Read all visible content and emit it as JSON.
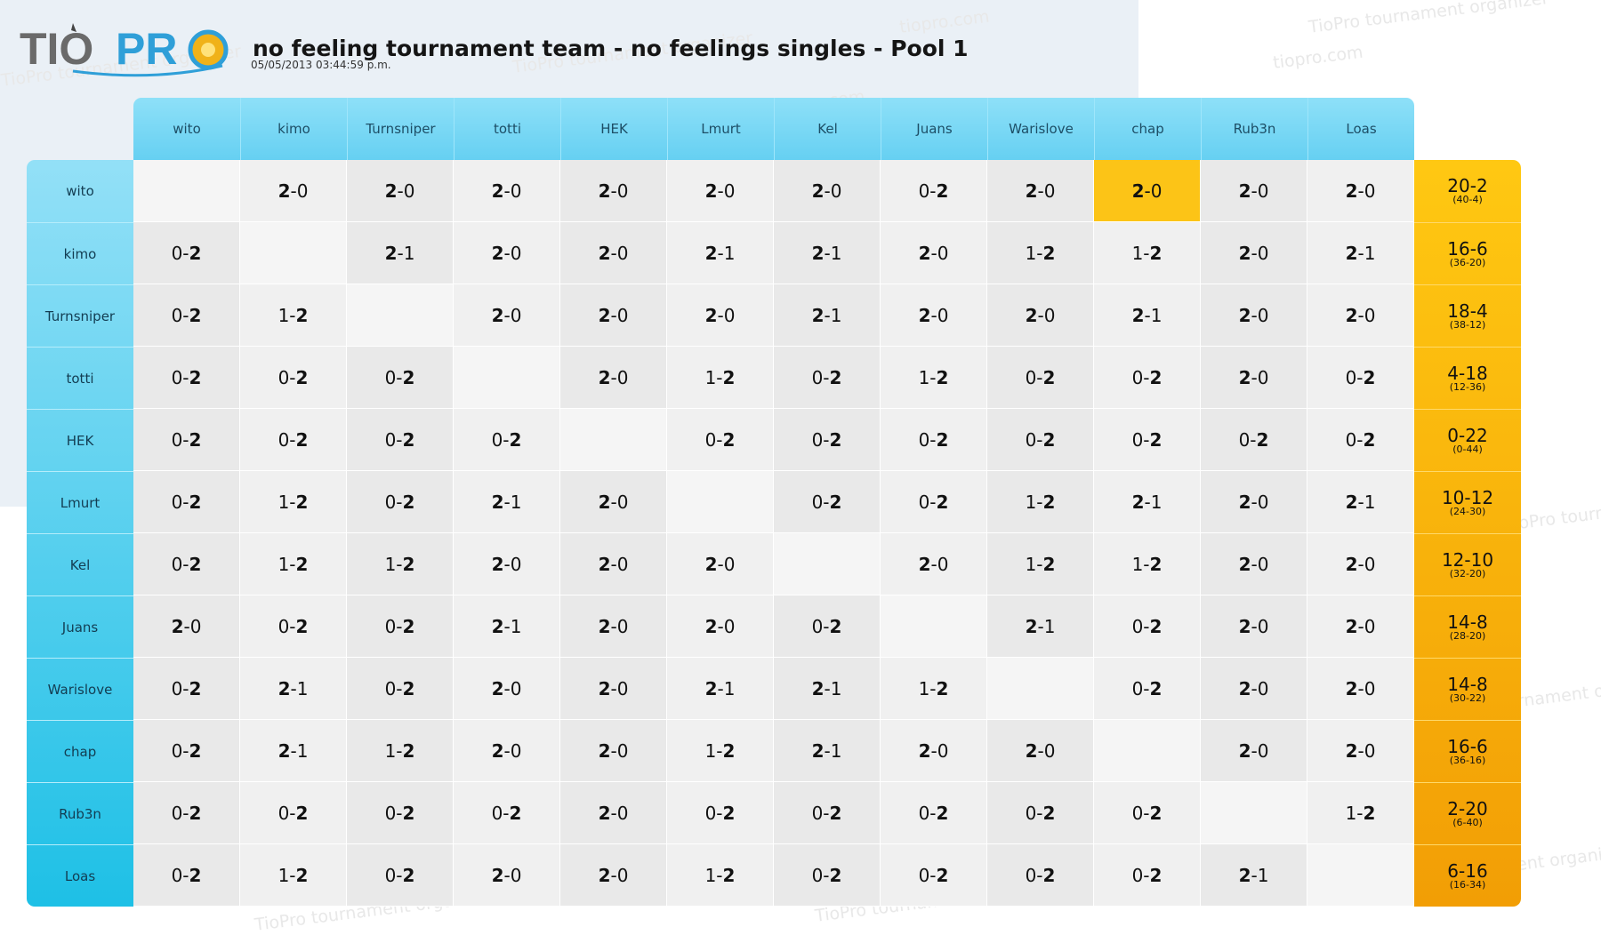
{
  "app": {
    "accent": "#5fcff2",
    "total_color": "#f8b40c",
    "highlight": "#fcc417"
  },
  "logo": {
    "text_tio": "TIO",
    "text_pro": "PR"
  },
  "header": {
    "title": "no feeling tournament team - no feelings singles - Pool 1",
    "date": "05/05/2013 03:44:59 p.m."
  },
  "watermarks": [
    "tiopro.com",
    "TioPro tournament organizer",
    "TioPro tournament organizer",
    "tiopro.com",
    "TioPro tournament organizer",
    "tiopro.com",
    "TioPro tournament organizer",
    "TioPro tournament organizer",
    "TioPro tournament organizer",
    "TioPro tournament organizer",
    "TioPro tournament organizer"
  ],
  "players": [
    "wito",
    "kimo",
    "Turnsniper",
    "totti",
    "HEK",
    "Lmurt",
    "Kel",
    "Juans",
    "Warislove",
    "chap",
    "Rub3n",
    "Loas"
  ],
  "results": [
    [
      "",
      "2-0",
      "2-0",
      "2-0",
      "2-0",
      "2-0",
      "2-0",
      "0-2",
      "2-0",
      "2-0",
      "2-0",
      "2-0"
    ],
    [
      "0-2",
      "",
      "2-1",
      "2-0",
      "2-0",
      "2-1",
      "2-1",
      "2-0",
      "1-2",
      "1-2",
      "2-0",
      "2-1"
    ],
    [
      "0-2",
      "1-2",
      "",
      "2-0",
      "2-0",
      "2-0",
      "2-1",
      "2-0",
      "2-0",
      "2-1",
      "2-0",
      "2-0"
    ],
    [
      "0-2",
      "0-2",
      "0-2",
      "",
      "2-0",
      "1-2",
      "0-2",
      "1-2",
      "0-2",
      "0-2",
      "2-0",
      "0-2"
    ],
    [
      "0-2",
      "0-2",
      "0-2",
      "0-2",
      "",
      "0-2",
      "0-2",
      "0-2",
      "0-2",
      "0-2",
      "0-2",
      "0-2"
    ],
    [
      "0-2",
      "1-2",
      "0-2",
      "2-1",
      "2-0",
      "",
      "0-2",
      "0-2",
      "1-2",
      "2-1",
      "2-0",
      "2-1"
    ],
    [
      "0-2",
      "1-2",
      "1-2",
      "2-0",
      "2-0",
      "2-0",
      "",
      "2-0",
      "1-2",
      "1-2",
      "2-0",
      "2-0"
    ],
    [
      "2-0",
      "0-2",
      "0-2",
      "2-1",
      "2-0",
      "2-0",
      "0-2",
      "",
      "2-1",
      "0-2",
      "2-0",
      "2-0"
    ],
    [
      "0-2",
      "2-1",
      "0-2",
      "2-0",
      "2-0",
      "2-1",
      "2-1",
      "1-2",
      "",
      "0-2",
      "2-0",
      "2-0"
    ],
    [
      "0-2",
      "2-1",
      "1-2",
      "2-0",
      "2-0",
      "1-2",
      "2-1",
      "2-0",
      "2-0",
      "",
      "2-0",
      "2-0"
    ],
    [
      "0-2",
      "0-2",
      "0-2",
      "0-2",
      "2-0",
      "0-2",
      "0-2",
      "0-2",
      "0-2",
      "0-2",
      "",
      "1-2"
    ],
    [
      "0-2",
      "1-2",
      "0-2",
      "2-0",
      "2-0",
      "1-2",
      "0-2",
      "0-2",
      "0-2",
      "0-2",
      "2-1",
      ""
    ]
  ],
  "highlight_cell": {
    "row": 0,
    "col": 9
  },
  "totals": [
    {
      "record": "20-2",
      "games": "(40-4)"
    },
    {
      "record": "16-6",
      "games": "(36-20)"
    },
    {
      "record": "18-4",
      "games": "(38-12)"
    },
    {
      "record": "4-18",
      "games": "(12-36)"
    },
    {
      "record": "0-22",
      "games": "(0-44)"
    },
    {
      "record": "10-12",
      "games": "(24-30)"
    },
    {
      "record": "12-10",
      "games": "(32-20)"
    },
    {
      "record": "14-8",
      "games": "(28-20)"
    },
    {
      "record": "14-8",
      "games": "(30-22)"
    },
    {
      "record": "16-6",
      "games": "(36-16)"
    },
    {
      "record": "2-20",
      "games": "(6-40)"
    },
    {
      "record": "6-16",
      "games": "(16-34)"
    }
  ]
}
